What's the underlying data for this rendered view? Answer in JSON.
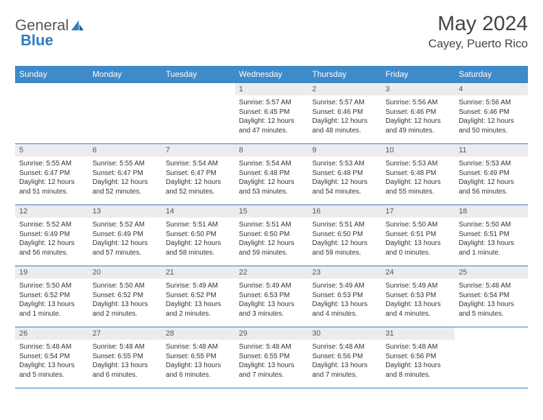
{
  "logo": {
    "text1": "General",
    "text2": "Blue"
  },
  "title": "May 2024",
  "location": "Cayey, Puerto Rico",
  "colors": {
    "header_bg": "#3f8ac9",
    "header_text": "#ffffff",
    "rule": "#2f7cc4",
    "daynum_bg": "#ececec",
    "text": "#333333"
  },
  "day_headers": [
    "Sunday",
    "Monday",
    "Tuesday",
    "Wednesday",
    "Thursday",
    "Friday",
    "Saturday"
  ],
  "weeks": [
    [
      {
        "n": "",
        "lines": []
      },
      {
        "n": "",
        "lines": []
      },
      {
        "n": "",
        "lines": []
      },
      {
        "n": "1",
        "lines": [
          "Sunrise: 5:57 AM",
          "Sunset: 6:45 PM",
          "Daylight: 12 hours",
          "and 47 minutes."
        ]
      },
      {
        "n": "2",
        "lines": [
          "Sunrise: 5:57 AM",
          "Sunset: 6:46 PM",
          "Daylight: 12 hours",
          "and 48 minutes."
        ]
      },
      {
        "n": "3",
        "lines": [
          "Sunrise: 5:56 AM",
          "Sunset: 6:46 PM",
          "Daylight: 12 hours",
          "and 49 minutes."
        ]
      },
      {
        "n": "4",
        "lines": [
          "Sunrise: 5:56 AM",
          "Sunset: 6:46 PM",
          "Daylight: 12 hours",
          "and 50 minutes."
        ]
      }
    ],
    [
      {
        "n": "5",
        "lines": [
          "Sunrise: 5:55 AM",
          "Sunset: 6:47 PM",
          "Daylight: 12 hours",
          "and 51 minutes."
        ]
      },
      {
        "n": "6",
        "lines": [
          "Sunrise: 5:55 AM",
          "Sunset: 6:47 PM",
          "Daylight: 12 hours",
          "and 52 minutes."
        ]
      },
      {
        "n": "7",
        "lines": [
          "Sunrise: 5:54 AM",
          "Sunset: 6:47 PM",
          "Daylight: 12 hours",
          "and 52 minutes."
        ]
      },
      {
        "n": "8",
        "lines": [
          "Sunrise: 5:54 AM",
          "Sunset: 6:48 PM",
          "Daylight: 12 hours",
          "and 53 minutes."
        ]
      },
      {
        "n": "9",
        "lines": [
          "Sunrise: 5:53 AM",
          "Sunset: 6:48 PM",
          "Daylight: 12 hours",
          "and 54 minutes."
        ]
      },
      {
        "n": "10",
        "lines": [
          "Sunrise: 5:53 AM",
          "Sunset: 6:48 PM",
          "Daylight: 12 hours",
          "and 55 minutes."
        ]
      },
      {
        "n": "11",
        "lines": [
          "Sunrise: 5:53 AM",
          "Sunset: 6:49 PM",
          "Daylight: 12 hours",
          "and 56 minutes."
        ]
      }
    ],
    [
      {
        "n": "12",
        "lines": [
          "Sunrise: 5:52 AM",
          "Sunset: 6:49 PM",
          "Daylight: 12 hours",
          "and 56 minutes."
        ]
      },
      {
        "n": "13",
        "lines": [
          "Sunrise: 5:52 AM",
          "Sunset: 6:49 PM",
          "Daylight: 12 hours",
          "and 57 minutes."
        ]
      },
      {
        "n": "14",
        "lines": [
          "Sunrise: 5:51 AM",
          "Sunset: 6:50 PM",
          "Daylight: 12 hours",
          "and 58 minutes."
        ]
      },
      {
        "n": "15",
        "lines": [
          "Sunrise: 5:51 AM",
          "Sunset: 6:50 PM",
          "Daylight: 12 hours",
          "and 59 minutes."
        ]
      },
      {
        "n": "16",
        "lines": [
          "Sunrise: 5:51 AM",
          "Sunset: 6:50 PM",
          "Daylight: 12 hours",
          "and 59 minutes."
        ]
      },
      {
        "n": "17",
        "lines": [
          "Sunrise: 5:50 AM",
          "Sunset: 6:51 PM",
          "Daylight: 13 hours",
          "and 0 minutes."
        ]
      },
      {
        "n": "18",
        "lines": [
          "Sunrise: 5:50 AM",
          "Sunset: 6:51 PM",
          "Daylight: 13 hours",
          "and 1 minute."
        ]
      }
    ],
    [
      {
        "n": "19",
        "lines": [
          "Sunrise: 5:50 AM",
          "Sunset: 6:52 PM",
          "Daylight: 13 hours",
          "and 1 minute."
        ]
      },
      {
        "n": "20",
        "lines": [
          "Sunrise: 5:50 AM",
          "Sunset: 6:52 PM",
          "Daylight: 13 hours",
          "and 2 minutes."
        ]
      },
      {
        "n": "21",
        "lines": [
          "Sunrise: 5:49 AM",
          "Sunset: 6:52 PM",
          "Daylight: 13 hours",
          "and 2 minutes."
        ]
      },
      {
        "n": "22",
        "lines": [
          "Sunrise: 5:49 AM",
          "Sunset: 6:53 PM",
          "Daylight: 13 hours",
          "and 3 minutes."
        ]
      },
      {
        "n": "23",
        "lines": [
          "Sunrise: 5:49 AM",
          "Sunset: 6:53 PM",
          "Daylight: 13 hours",
          "and 4 minutes."
        ]
      },
      {
        "n": "24",
        "lines": [
          "Sunrise: 5:49 AM",
          "Sunset: 6:53 PM",
          "Daylight: 13 hours",
          "and 4 minutes."
        ]
      },
      {
        "n": "25",
        "lines": [
          "Sunrise: 5:48 AM",
          "Sunset: 6:54 PM",
          "Daylight: 13 hours",
          "and 5 minutes."
        ]
      }
    ],
    [
      {
        "n": "26",
        "lines": [
          "Sunrise: 5:48 AM",
          "Sunset: 6:54 PM",
          "Daylight: 13 hours",
          "and 5 minutes."
        ]
      },
      {
        "n": "27",
        "lines": [
          "Sunrise: 5:48 AM",
          "Sunset: 6:55 PM",
          "Daylight: 13 hours",
          "and 6 minutes."
        ]
      },
      {
        "n": "28",
        "lines": [
          "Sunrise: 5:48 AM",
          "Sunset: 6:55 PM",
          "Daylight: 13 hours",
          "and 6 minutes."
        ]
      },
      {
        "n": "29",
        "lines": [
          "Sunrise: 5:48 AM",
          "Sunset: 6:55 PM",
          "Daylight: 13 hours",
          "and 7 minutes."
        ]
      },
      {
        "n": "30",
        "lines": [
          "Sunrise: 5:48 AM",
          "Sunset: 6:56 PM",
          "Daylight: 13 hours",
          "and 7 minutes."
        ]
      },
      {
        "n": "31",
        "lines": [
          "Sunrise: 5:48 AM",
          "Sunset: 6:56 PM",
          "Daylight: 13 hours",
          "and 8 minutes."
        ]
      },
      {
        "n": "",
        "lines": []
      }
    ]
  ]
}
